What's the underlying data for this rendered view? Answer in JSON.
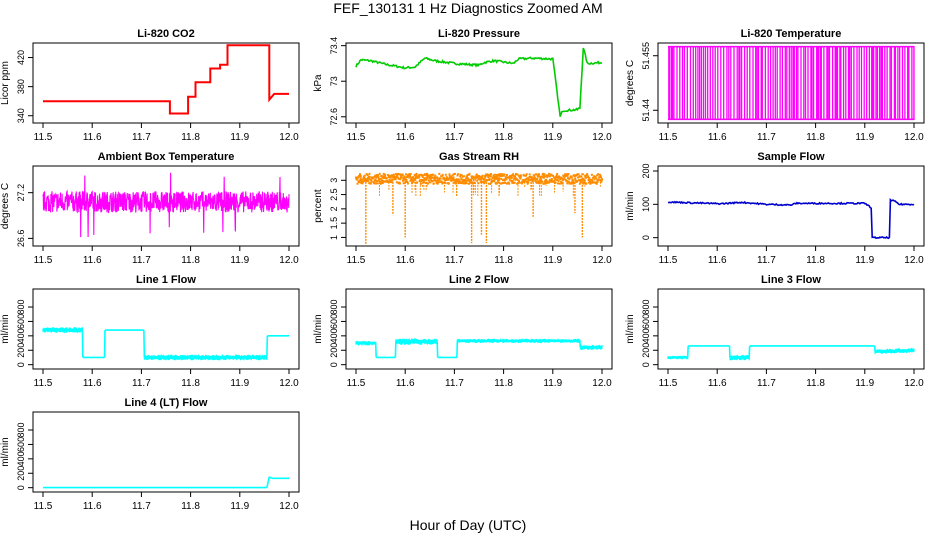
{
  "figure": {
    "title": "FEF_130131  1 Hz Diagnostics Zoomed AM",
    "xlabel": "Hour of Day (UTC)"
  },
  "chart_data": [
    {
      "type": "line",
      "title": "Li-820 CO2",
      "ylabel": "Licor ppm",
      "color": "#ff0000",
      "xlim": [
        11.5,
        12.0
      ],
      "xticks": [
        11.5,
        11.6,
        11.7,
        11.8,
        11.9,
        12.0
      ],
      "ylim": [
        330,
        440
      ],
      "yticks": [
        340,
        380,
        420
      ],
      "style": "step",
      "x": [
        11.5,
        11.758,
        11.758,
        11.795,
        11.795,
        11.81,
        11.81,
        11.84,
        11.84,
        11.86,
        11.86,
        11.875,
        11.875,
        11.96,
        11.96,
        11.97,
        11.97,
        12.0
      ],
      "y": [
        360,
        360,
        343,
        343,
        366,
        366,
        386,
        386,
        405,
        405,
        410,
        410,
        437,
        437,
        362,
        370,
        370,
        370
      ]
    },
    {
      "type": "line",
      "title": "Li-820 Pressure",
      "ylabel": "kPa",
      "color": "#00cc00",
      "xlim": [
        11.5,
        12.0
      ],
      "xticks": [
        11.5,
        11.6,
        11.7,
        11.8,
        11.9,
        12.0
      ],
      "ylim": [
        72.53,
        73.43
      ],
      "yticks": [
        72.6,
        73.0,
        73.4
      ],
      "style": "noisy",
      "x": [
        11.5,
        11.51,
        11.53,
        11.56,
        11.6,
        11.62,
        11.64,
        11.66,
        11.7,
        11.75,
        11.76,
        11.78,
        11.82,
        11.83,
        11.86,
        11.9,
        11.91,
        11.915,
        11.92,
        11.95,
        11.955,
        11.962,
        11.97,
        12.0
      ],
      "y": [
        73.17,
        73.24,
        73.23,
        73.19,
        73.15,
        73.16,
        73.26,
        73.23,
        73.2,
        73.18,
        73.21,
        73.23,
        73.2,
        73.25,
        73.26,
        73.25,
        72.82,
        72.6,
        72.67,
        72.68,
        72.7,
        73.38,
        73.2,
        73.21
      ],
      "noise": 0.012
    },
    {
      "type": "line",
      "title": "Li-820 Temperature",
      "ylabel": "degrees C",
      "color": "#ff00ff",
      "xlim": [
        11.5,
        12.0
      ],
      "xticks": [
        11.5,
        11.6,
        11.7,
        11.8,
        11.9,
        12.0
      ],
      "ylim": [
        51.4365,
        51.4585
      ],
      "yticks": [
        51.44,
        51.455
      ],
      "style": "toggle",
      "levels": [
        51.4375,
        51.4575
      ],
      "n_toggles": 120
    },
    {
      "type": "line",
      "title": "Ambient Box Temperature",
      "ylabel": "degrees C",
      "color": "#ff00ff",
      "xlim": [
        11.5,
        12.0
      ],
      "xticks": [
        11.5,
        11.6,
        11.7,
        11.8,
        11.9,
        12.0
      ],
      "ylim": [
        26.5,
        27.55
      ],
      "yticks": [
        26.6,
        27.2
      ],
      "style": "noise",
      "center": 27.08,
      "spread": 0.14,
      "spike_low": 26.6,
      "spike_high": 27.48
    },
    {
      "type": "scatter",
      "title": "Gas Stream RH",
      "ylabel": "percent",
      "color": "#ff8c00",
      "xlim": [
        11.5,
        12.0
      ],
      "xticks": [
        11.5,
        11.6,
        11.7,
        11.8,
        11.9,
        12.0
      ],
      "ylim": [
        0.7,
        3.5
      ],
      "yticks": [
        1.0,
        1.5,
        2.0,
        2.5,
        3.0
      ],
      "style": "rh",
      "baseline": 3.05,
      "baseline_spread": 0.35,
      "dips_x": [
        11.52,
        11.575,
        11.6,
        11.735,
        11.755,
        11.765,
        11.86,
        11.945,
        11.96
      ],
      "dips_y": [
        0.75,
        1.8,
        1.0,
        0.8,
        1.1,
        0.8,
        1.7,
        1.85,
        1.0
      ]
    },
    {
      "type": "line",
      "title": "Sample Flow",
      "ylabel": "ml/min",
      "color": "#0000cc",
      "xlim": [
        11.5,
        12.0
      ],
      "xticks": [
        11.5,
        11.6,
        11.7,
        11.8,
        11.9,
        12.0
      ],
      "ylim": [
        -25,
        215
      ],
      "yticks": [
        0,
        100,
        200
      ],
      "style": "noisy",
      "x": [
        11.5,
        11.6,
        11.61,
        11.65,
        11.7,
        11.75,
        11.76,
        11.9,
        11.913,
        11.915,
        11.95,
        11.952,
        11.96,
        11.97,
        12.0
      ],
      "y": [
        107,
        102,
        102,
        106,
        100,
        98,
        103,
        103,
        90,
        0,
        0,
        112,
        110,
        100,
        100
      ],
      "noise": 2
    },
    {
      "type": "line",
      "title": "Line 1 Flow",
      "ylabel": "ml/min",
      "color": "#00ffff",
      "xlim": [
        11.5,
        12.0
      ],
      "xticks": [
        11.5,
        11.6,
        11.7,
        11.8,
        11.9,
        12.0
      ],
      "ylim": [
        -60,
        1050
      ],
      "yticks": [
        0,
        200,
        400,
        600,
        800
      ],
      "style": "band",
      "x": [
        11.5,
        11.58,
        11.581,
        11.625,
        11.626,
        11.705,
        11.706,
        11.955,
        11.956,
        12.0
      ],
      "y": [
        480,
        480,
        100,
        100,
        480,
        480,
        100,
        100,
        400,
        400
      ],
      "band": [
        40,
        0,
        0,
        40,
        0,
        0,
        40
      ]
    },
    {
      "type": "line",
      "title": "Line 2 Flow",
      "ylabel": "ml/min",
      "color": "#00ffff",
      "xlim": [
        11.5,
        12.0
      ],
      "xticks": [
        11.5,
        11.6,
        11.7,
        11.8,
        11.9,
        12.0
      ],
      "ylim": [
        -60,
        1050
      ],
      "yticks": [
        0,
        200,
        400,
        600,
        800
      ],
      "style": "band",
      "x": [
        11.5,
        11.54,
        11.541,
        11.58,
        11.581,
        11.665,
        11.666,
        11.705,
        11.706,
        11.955,
        11.956,
        12.0
      ],
      "y": [
        300,
        300,
        100,
        100,
        320,
        320,
        100,
        100,
        330,
        330,
        240,
        240
      ],
      "band": [
        35,
        0,
        45,
        0,
        30,
        35
      ]
    },
    {
      "type": "line",
      "title": "Line 3 Flow",
      "ylabel": "ml/min",
      "color": "#00ffff",
      "xlim": [
        11.5,
        12.0
      ],
      "xticks": [
        11.5,
        11.6,
        11.7,
        11.8,
        11.9,
        12.0
      ],
      "ylim": [
        -60,
        1050
      ],
      "yticks": [
        0,
        200,
        400,
        600,
        800
      ],
      "style": "band",
      "x": [
        11.5,
        11.54,
        11.541,
        11.625,
        11.626,
        11.665,
        11.666,
        11.92,
        11.921,
        12.0
      ],
      "y": [
        100,
        100,
        260,
        260,
        100,
        100,
        260,
        260,
        180,
        200
      ],
      "band": [
        25,
        0,
        40,
        0,
        35,
        0,
        50
      ]
    },
    {
      "type": "line",
      "title": "Line 4 (LT) Flow",
      "ylabel": "ml/min",
      "color": "#00ffff",
      "xlim": [
        11.5,
        12.0
      ],
      "xticks": [
        11.5,
        11.6,
        11.7,
        11.8,
        11.9,
        12.0
      ],
      "ylim": [
        -60,
        1050
      ],
      "yticks": [
        0,
        200,
        400,
        600,
        800
      ],
      "style": "band",
      "x": [
        11.5,
        11.955,
        11.96,
        11.965,
        12.0
      ],
      "y": [
        2,
        2,
        150,
        130,
        130
      ],
      "band": [
        0,
        0,
        0,
        0
      ]
    }
  ]
}
